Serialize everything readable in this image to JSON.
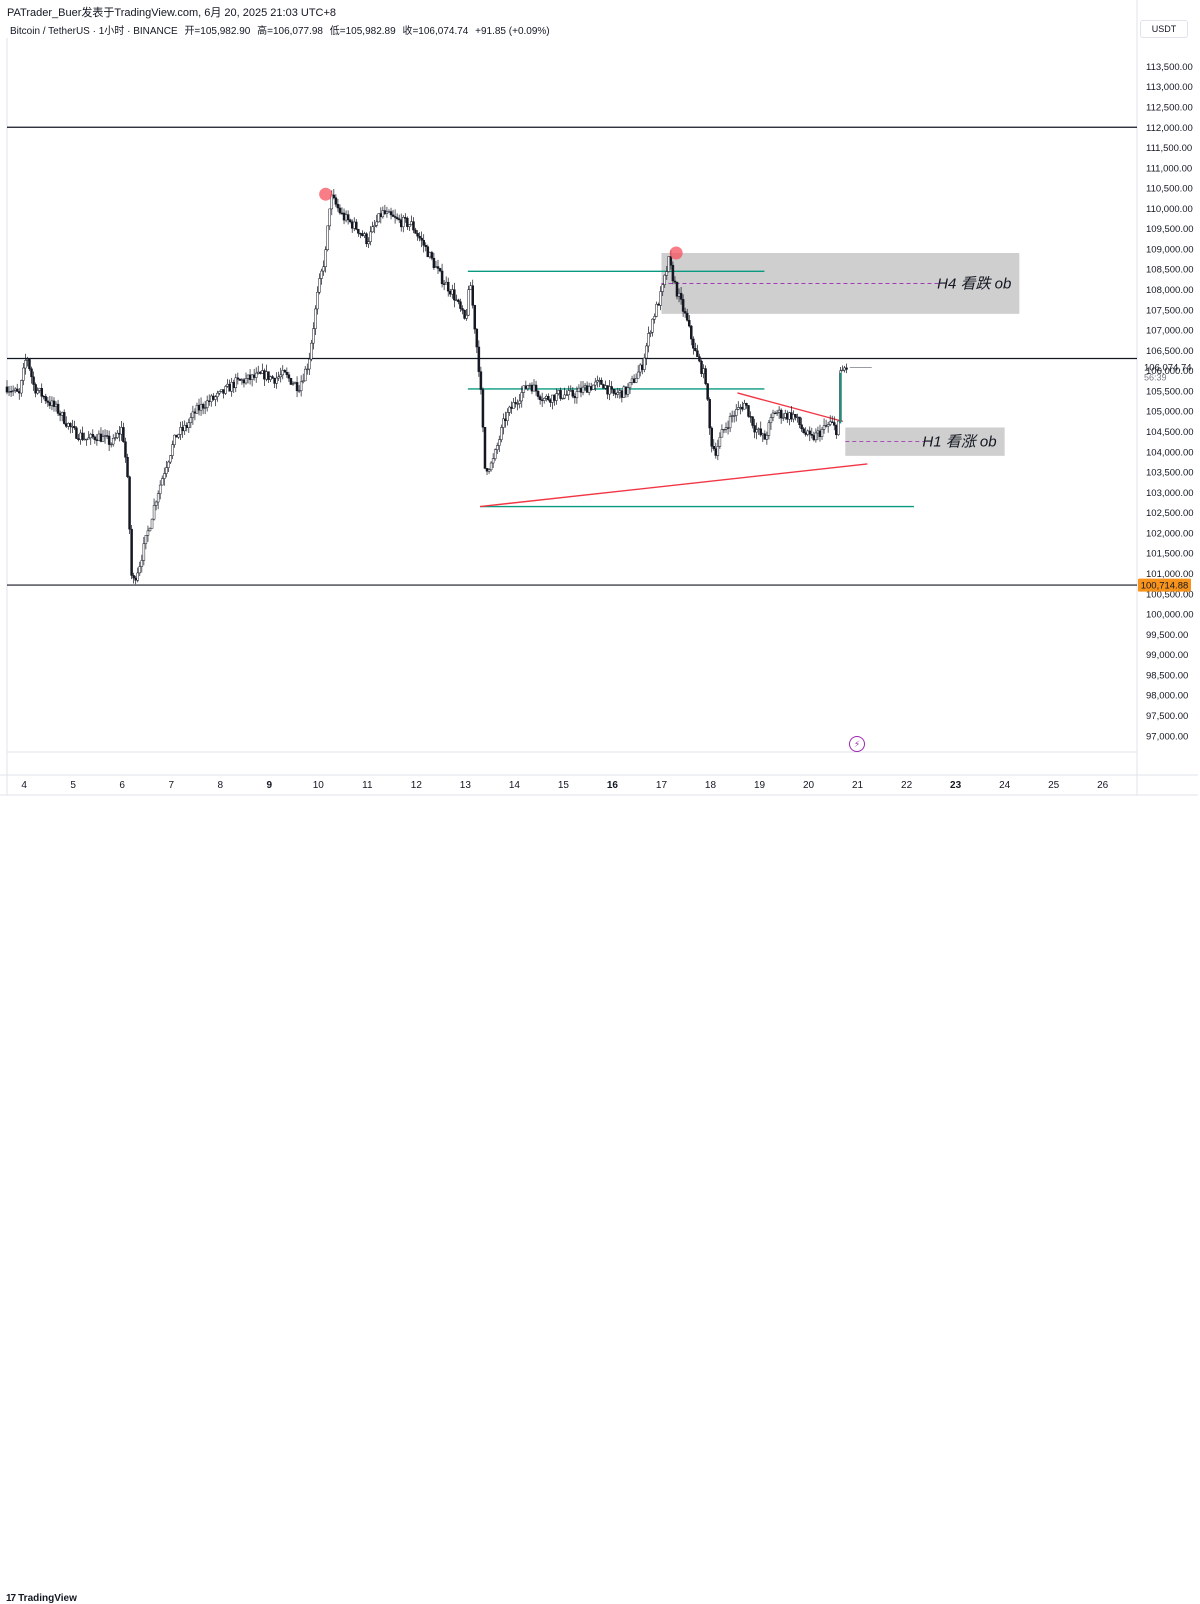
{
  "header": {
    "credit": "PATrader_Buer发表于TradingView.com, 6月 20, 2025 21:03 UTC+8",
    "symbol": "Bitcoin / TetherUS · 1小时 · BINANCE",
    "open": "开=105,982.90",
    "high": "高=106,077.98",
    "low": "低=105,982.89",
    "close": "收=106,074.74",
    "change": "+91.85 (+0.09%)"
  },
  "currency": "USDT",
  "price_tags": {
    "current_price": "106,074.74",
    "countdown": "56:39",
    "level_price": "100,714.88"
  },
  "footer": {
    "brand": "TradingView"
  },
  "colors": {
    "up": "#131722",
    "down": "#131722",
    "accent_orange": "#f7931a",
    "teal": "#089981",
    "red_line": "#f23645",
    "ob_gray": "#d1d4dc",
    "dot": "#f7525f"
  },
  "chart_data": {
    "type": "candlestick",
    "title": "Bitcoin / TetherUS",
    "interval": "1小时",
    "exchange": "BINANCE",
    "ylim": [
      96600,
      114200
    ],
    "y_ticks": [
      97000,
      97500,
      98000,
      98500,
      99000,
      99500,
      100000,
      100500,
      101000,
      101500,
      102000,
      102500,
      103000,
      103500,
      104000,
      104500,
      105000,
      105500,
      106000,
      106500,
      107000,
      107500,
      108000,
      108500,
      109000,
      109500,
      110000,
      110500,
      111000,
      111500,
      112000,
      112500,
      113000,
      113500
    ],
    "y_tick_labels": [
      "97,000.00",
      "97,500.00",
      "98,000.00",
      "98,500.00",
      "99,000.00",
      "99,500.00",
      "100,000.00",
      "100,500.00",
      "101,000.00",
      "101,500.00",
      "102,000.00",
      "102,500.00",
      "103,000.00",
      "103,500.00",
      "104,000.00",
      "104,500.00",
      "105,000.00",
      "105,500.00",
      "106,000.00",
      "106,500.00",
      "107,000.00",
      "107,500.00",
      "108,000.00",
      "108,500.00",
      "109,000.00",
      "109,500.00",
      "110,000.00",
      "110,500.00",
      "111,000.00",
      "111,500.00",
      "112,000.00",
      "112,500.00",
      "113,000.00",
      "113,500.00"
    ],
    "x_range": [
      3.65,
      26.7
    ],
    "x_ticks": [
      4,
      5,
      6,
      7,
      8,
      9,
      10,
      11,
      12,
      13,
      14,
      15,
      16,
      17,
      18,
      19,
      20,
      21,
      22,
      23,
      24,
      25,
      26
    ],
    "x_tick_labels": [
      "4",
      "5",
      "6",
      "7",
      "8",
      "9",
      "10",
      "11",
      "12",
      "13",
      "14",
      "15",
      "16",
      "17",
      "18",
      "19",
      "20",
      "21",
      "22",
      "23",
      "24",
      "25",
      "26"
    ],
    "x_tick_bold": [
      "9",
      "16",
      "23"
    ],
    "price_path": [
      [
        3.65,
        105600
      ],
      [
        3.9,
        105400
      ],
      [
        4.05,
        106400
      ],
      [
        4.2,
        105600
      ],
      [
        4.45,
        105300
      ],
      [
        4.7,
        105000
      ],
      [
        5.0,
        104500
      ],
      [
        5.3,
        104300
      ],
      [
        5.5,
        104400
      ],
      [
        5.8,
        104200
      ],
      [
        6.0,
        104600
      ],
      [
        6.1,
        103500
      ],
      [
        6.2,
        100714
      ],
      [
        6.35,
        101200
      ],
      [
        6.5,
        101900
      ],
      [
        6.7,
        102900
      ],
      [
        6.9,
        103700
      ],
      [
        7.1,
        104400
      ],
      [
        7.3,
        104600
      ],
      [
        7.5,
        105000
      ],
      [
        7.7,
        105200
      ],
      [
        8.0,
        105400
      ],
      [
        8.3,
        105700
      ],
      [
        8.6,
        105800
      ],
      [
        8.9,
        105900
      ],
      [
        9.1,
        105800
      ],
      [
        9.3,
        105900
      ],
      [
        9.6,
        105600
      ],
      [
        9.8,
        106200
      ],
      [
        10.0,
        108000
      ],
      [
        10.15,
        108900
      ],
      [
        10.25,
        110300
      ],
      [
        10.5,
        109800
      ],
      [
        10.8,
        109500
      ],
      [
        11.0,
        109200
      ],
      [
        11.3,
        109900
      ],
      [
        11.6,
        109700
      ],
      [
        11.9,
        109600
      ],
      [
        12.2,
        109000
      ],
      [
        12.5,
        108300
      ],
      [
        12.75,
        107900
      ],
      [
        13.0,
        107200
      ],
      [
        13.1,
        108200
      ],
      [
        13.2,
        107000
      ],
      [
        13.3,
        105800
      ],
      [
        13.4,
        103600
      ],
      [
        13.55,
        103700
      ],
      [
        13.8,
        104800
      ],
      [
        14.0,
        105200
      ],
      [
        14.3,
        105700
      ],
      [
        14.6,
        105300
      ],
      [
        14.9,
        105400
      ],
      [
        15.2,
        105400
      ],
      [
        15.5,
        105600
      ],
      [
        15.8,
        105700
      ],
      [
        16.0,
        105400
      ],
      [
        16.3,
        105500
      ],
      [
        16.6,
        106100
      ],
      [
        16.8,
        107200
      ],
      [
        17.0,
        107900
      ],
      [
        17.15,
        108700
      ],
      [
        17.3,
        108000
      ],
      [
        17.5,
        107300
      ],
      [
        17.7,
        106400
      ],
      [
        17.9,
        105800
      ],
      [
        18.0,
        104300
      ],
      [
        18.1,
        104000
      ],
      [
        18.25,
        104500
      ],
      [
        18.45,
        104900
      ],
      [
        18.7,
        105200
      ],
      [
        18.9,
        104600
      ],
      [
        19.1,
        104300
      ],
      [
        19.3,
        105000
      ],
      [
        19.5,
        104900
      ],
      [
        19.7,
        104900
      ],
      [
        19.9,
        104500
      ],
      [
        20.05,
        104300
      ],
      [
        20.25,
        104500
      ],
      [
        20.45,
        104700
      ],
      [
        20.6,
        104500
      ],
      [
        20.65,
        105900
      ],
      [
        20.72,
        106050
      ],
      [
        20.8,
        106074
      ]
    ],
    "pivot_markers": [
      {
        "x": 10.15,
        "y": 110350
      },
      {
        "x": 17.3,
        "y": 108900
      }
    ],
    "horizontal_lines": [
      {
        "y": 112000,
        "color": "#131722"
      },
      {
        "y": 106300,
        "color": "#131722"
      },
      {
        "y": 100714.88,
        "color": "#131722"
      }
    ],
    "segments": [
      {
        "x1": 13.05,
        "y1": 108450,
        "x2": 19.1,
        "y2": 108450,
        "color": "#089981"
      },
      {
        "x1": 13.05,
        "y1": 105550,
        "x2": 19.1,
        "y2": 105550,
        "color": "#089981"
      },
      {
        "x1": 13.3,
        "y1": 102650,
        "x2": 22.15,
        "y2": 102650,
        "color": "#089981"
      },
      {
        "x1": 13.3,
        "y1": 102650,
        "x2": 21.2,
        "y2": 103700,
        "color": "#f23645"
      },
      {
        "x1": 18.55,
        "y1": 105450,
        "x2": 20.7,
        "y2": 104750,
        "color": "#f23645"
      }
    ],
    "zones": [
      {
        "x1": 17.0,
        "x2": 24.3,
        "y1": 107400,
        "y2": 108900,
        "label": "H4 看跌 ob",
        "mid": 108150
      },
      {
        "x1": 20.75,
        "x2": 24.0,
        "y1": 103900,
        "y2": 104600,
        "label": "H1 看涨 ob",
        "mid": 104250
      }
    ],
    "last_price": 106074.74
  }
}
